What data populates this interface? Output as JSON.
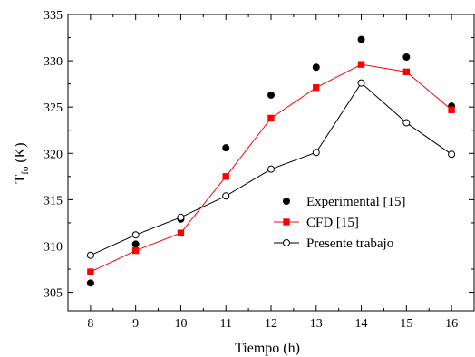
{
  "chart_data": {
    "type": "line",
    "xlabel": "Tiempo (h)",
    "ylabel_main": "T",
    "ylabel_sub": "fo",
    "ylabel_unit": "(K)",
    "x": [
      8,
      9,
      10,
      11,
      12,
      13,
      14,
      15,
      16
    ],
    "xlim": [
      7.5,
      16.5
    ],
    "ylim": [
      303,
      335
    ],
    "xticks": [
      8,
      9,
      10,
      11,
      12,
      13,
      14,
      15,
      16
    ],
    "yticks": [
      305,
      310,
      315,
      320,
      325,
      330,
      335
    ],
    "grid": false,
    "legend_position": "center-right",
    "series": [
      {
        "name": "Experimental [15]",
        "style": "marker-only",
        "marker": "filled-circle",
        "color": "#000000",
        "values": [
          306.0,
          310.2,
          312.9,
          320.6,
          326.3,
          329.3,
          332.3,
          330.4,
          325.1
        ]
      },
      {
        "name": "CFD [15]",
        "style": "line-marker",
        "marker": "filled-square",
        "color": "#ff0000",
        "values": [
          307.2,
          309.5,
          311.4,
          317.5,
          323.8,
          327.1,
          329.6,
          328.8,
          324.7
        ]
      },
      {
        "name": "Presente trabajo",
        "style": "line-marker",
        "marker": "open-circle",
        "color": "#000000",
        "values": [
          309.0,
          311.2,
          313.1,
          315.4,
          318.3,
          320.1,
          327.6,
          323.3,
          319.9
        ]
      }
    ]
  }
}
